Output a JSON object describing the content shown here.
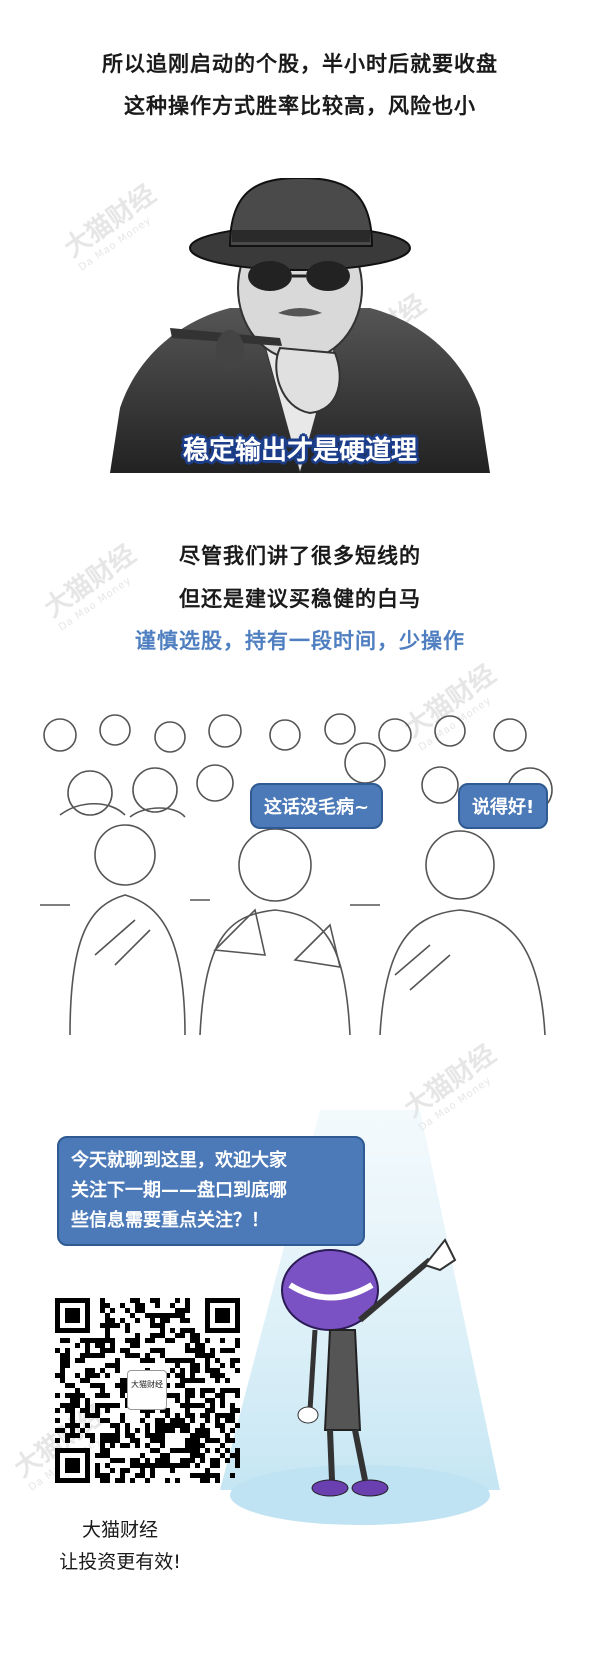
{
  "intro": {
    "line1": "所以追刚启动的个股，半小时后就要收盘",
    "line2": "这种操作方式胜率比较高，风险也小"
  },
  "portrait": {
    "caption": "稳定输出才是硬道理"
  },
  "advice": {
    "line1": "尽管我们讲了很多短线的",
    "line2": "但还是建议买稳健的白马",
    "line3": "谨慎选股，持有一段时间，少操作"
  },
  "audience": {
    "bubble_left": "这话没毛病~",
    "bubble_right": "说得好!"
  },
  "closing": {
    "bubble": [
      "今天就聊到这里，欢迎大家",
      "关注下一期——盘口到底哪",
      "些信息需要重点关注？！"
    ]
  },
  "qr": {
    "center_label": "大猫财经"
  },
  "brand": {
    "name": "大猫财经",
    "slogan": "让投资更有效!"
  },
  "watermark": {
    "cn": "大猫财经",
    "en": "Da Mao Money"
  },
  "colors": {
    "accent": "#4f7fc0",
    "bubble": "#4c7ab8",
    "caption_outline": "#1c3e8a"
  }
}
